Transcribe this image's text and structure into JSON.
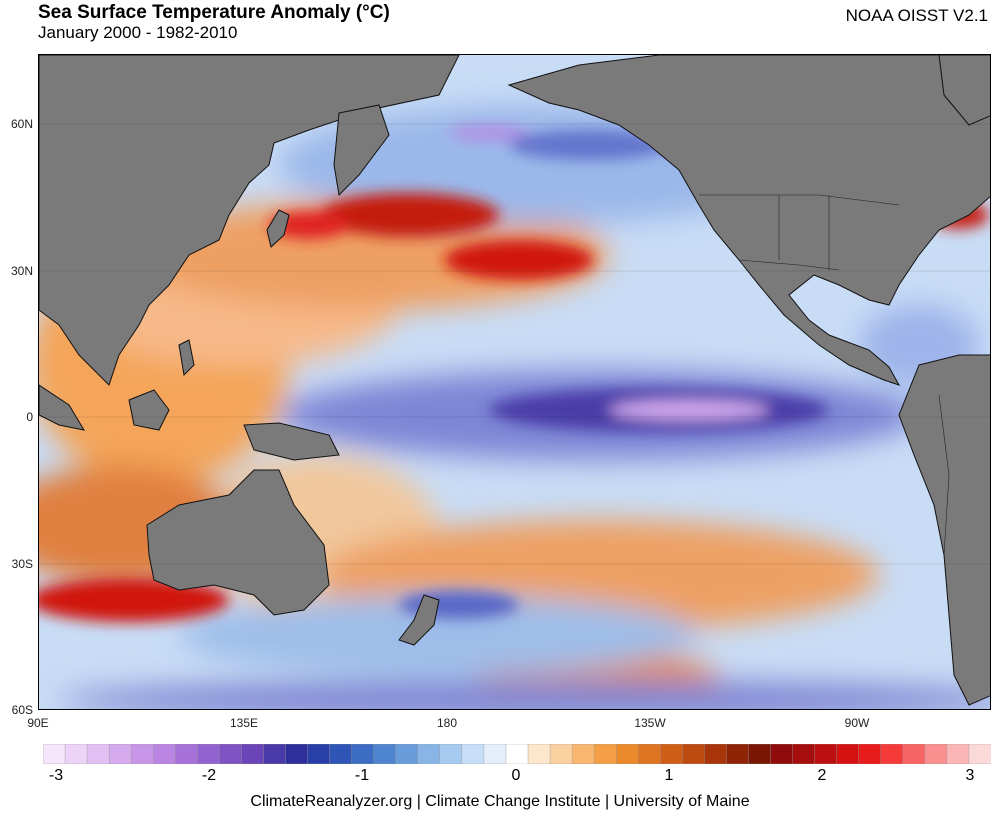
{
  "header": {
    "title": "Sea Surface Temperature Anomaly (°C)",
    "subtitle": "January 2000 - 1982-2010",
    "source": "NOAA OISST V2.1"
  },
  "map": {
    "lat_labels": [
      "60N",
      "30N",
      "0",
      "30S",
      "60S"
    ],
    "lon_labels": [
      "90E",
      "135E",
      "180",
      "135W",
      "90W"
    ],
    "land_color": "#7a7a7a",
    "ocean_base_color": "#c8dcf5"
  },
  "colorbar": {
    "tick_labels": [
      "-3",
      "-2",
      "-1",
      "0",
      "1",
      "2",
      "3"
    ],
    "colors": [
      "#f5e6fb",
      "#ecd3f7",
      "#e3c0f3",
      "#d6aaee",
      "#c896e9",
      "#b984e2",
      "#a672da",
      "#9262cf",
      "#7f53c4",
      "#6b45b7",
      "#4a3aa8",
      "#2e2f9b",
      "#283fa8",
      "#2f55b6",
      "#3d6dc2",
      "#4f84cf",
      "#6a9cdb",
      "#88b5e6",
      "#a7cbf0",
      "#c6def7",
      "#e4eefb",
      "#ffffff",
      "#fde6cc",
      "#fbd0a0",
      "#f8b66f",
      "#f49f45",
      "#eb8a2a",
      "#de7420",
      "#cf5f17",
      "#bd4a10",
      "#a8360a",
      "#8f2306",
      "#7a1604",
      "#8e0c0c",
      "#a60e0e",
      "#bd0f0f",
      "#d41212",
      "#e61b1b",
      "#f53a3a",
      "#f86464",
      "#f98f8f",
      "#fab5b5",
      "#fcd9d9"
    ]
  },
  "footer": "ClimateReanalyzer.org | Climate Change Institute | University of Maine"
}
